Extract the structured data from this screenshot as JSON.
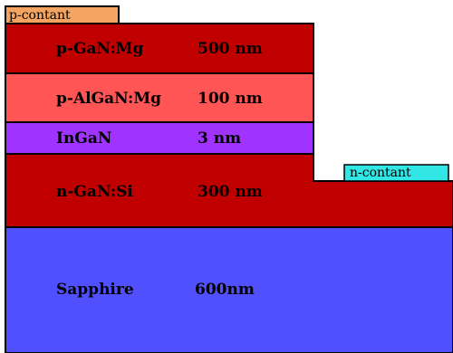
{
  "colors": {
    "p_contact": "#f4a460",
    "n_contact": "#33e6e6",
    "p_gan": "#c00000",
    "p_algan": "#ff5555",
    "ingan": "#a033ff",
    "n_gan": "#c00000",
    "sapphire": "#5050ff",
    "outline": "#000000"
  },
  "contacts": {
    "p_label": "p-contant",
    "n_label": "n-contant"
  },
  "layers": [
    {
      "material": "p-GaN:Mg",
      "thickness": "500 nm",
      "color_key": "p_gan"
    },
    {
      "material": "p-AlGaN:Mg",
      "thickness": "100 nm",
      "color_key": "p_algan"
    },
    {
      "material": "InGaN",
      "thickness": "3 nm",
      "color_key": "ingan"
    },
    {
      "material": "n-GaN:Si",
      "thickness": "300 nm",
      "color_key": "n_gan"
    },
    {
      "material": "Sapphire",
      "thickness": "600nm",
      "color_key": "sapphire"
    }
  ]
}
